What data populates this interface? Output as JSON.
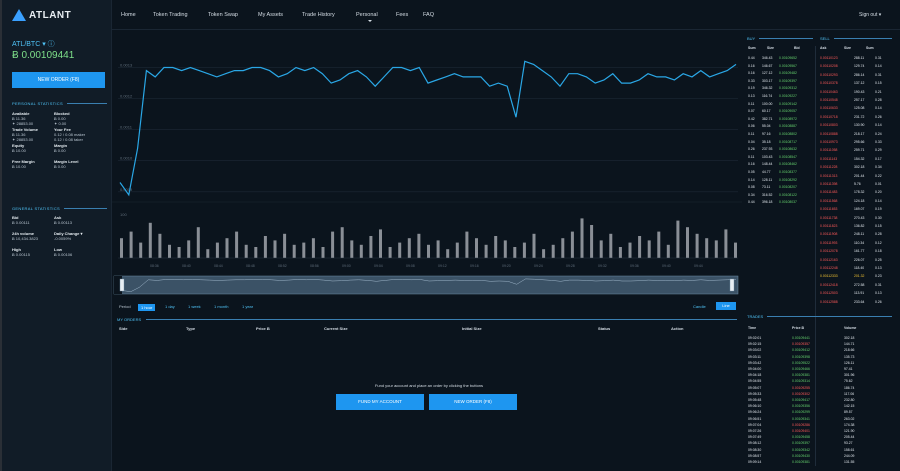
{
  "brand": {
    "logo_text": "ATLANT"
  },
  "sidebar": {
    "pair": "ATL/BTC ▾ ⓘ",
    "price": "Ƀ 0.00109441",
    "new_order_label": "NEW ORDER (F8)",
    "personal_title": "PERSONAL STATISTICS",
    "personal_stats": [
      {
        "label": "Available",
        "lines": [
          "Ƀ 11.36",
          "✦ 28853.00"
        ]
      },
      {
        "label": "Blocked",
        "lines": [
          "Ƀ 0.00",
          "✦ 0.00"
        ]
      },
      {
        "label": "Trade Volume",
        "lines": [
          "Ƀ 11.36",
          "✦ 28853.00"
        ]
      },
      {
        "label": "Your Fee",
        "lines": [
          "0.12 / 0.08 maker",
          "0.12 / 0.08 taker"
        ]
      },
      {
        "label": "Equity",
        "lines": [
          "Ƀ 10.00"
        ]
      },
      {
        "label": "Margin",
        "lines": [
          "Ƀ 0.00"
        ]
      },
      {
        "label": "Free Margin",
        "lines": [
          "Ƀ 10.00"
        ]
      },
      {
        "label": "Margin Level",
        "lines": [
          "Ƀ 0.00"
        ]
      }
    ],
    "general_title": "GENERAL STATISTICS",
    "general_stats": [
      {
        "label": "Bid",
        "lines": [
          "Ƀ 0.00111"
        ]
      },
      {
        "label": "Ask",
        "lines": [
          "Ƀ 0.00113"
        ]
      },
      {
        "label": "24h volume",
        "lines": [
          "Ƀ 10,434.3823"
        ]
      },
      {
        "label": "Daily Change ▾",
        "lines": [
          "-0.0059%"
        ]
      },
      {
        "label": "High",
        "lines": [
          "Ƀ 0.00115"
        ]
      },
      {
        "label": "Low",
        "lines": [
          "Ƀ 0.00106"
        ]
      }
    ]
  },
  "nav": {
    "items": [
      "Home",
      "Token Trading",
      "Token Swap",
      "My Assets",
      "Trade History",
      "Personal",
      "Fees",
      "FAQ"
    ],
    "sign_out": "Sign out ▾"
  },
  "chart_data": {
    "type": "line",
    "y_ticks": [
      "0.0013",
      "0.0012",
      "0.0011",
      "0.0010",
      "0.0009"
    ],
    "ylim": [
      0.00088,
      0.00135
    ],
    "price": [
      0.00093,
      0.00089,
      0.00104,
      0.00129,
      0.00127,
      0.0013,
      0.0013,
      0.00129,
      0.0013,
      0.00129,
      0.00128,
      0.00127,
      0.00128,
      0.00129,
      0.00129,
      0.0013,
      0.0013,
      0.00129,
      0.00127,
      0.00128,
      0.0013,
      0.00129,
      0.0013,
      0.00128,
      0.00125,
      0.00126,
      0.00128,
      0.00129,
      0.00127,
      0.00124,
      0.00127,
      0.0013,
      0.0013,
      0.00129,
      0.0013,
      0.00125,
      0.00126,
      0.00127,
      0.00128,
      0.00127,
      0.00127,
      0.00127,
      0.00124,
      0.00125,
      0.00124,
      0.00114,
      0.00132,
      0.00131,
      0.00129,
      0.00127,
      0.00124,
      0.00128,
      0.00128,
      0.00127,
      0.00125,
      0.00126,
      0.00128,
      0.00125,
      0.00125,
      0.00126,
      0.00128,
      0.00127,
      0.00127,
      0.00126,
      0.00128,
      0.00127,
      0.00129,
      0.00127,
      0.00128,
      0.00129,
      0.00131
    ],
    "volume_top_label": "100",
    "volume": [
      45,
      60,
      35,
      80,
      55,
      30,
      25,
      40,
      70,
      20,
      35,
      45,
      60,
      30,
      25,
      50,
      40,
      55,
      30,
      35,
      45,
      25,
      60,
      70,
      40,
      30,
      50,
      65,
      25,
      35,
      45,
      55,
      30,
      40,
      20,
      35,
      60,
      45,
      30,
      50,
      40,
      25,
      35,
      55,
      20,
      30,
      45,
      60,
      90,
      75,
      40,
      55,
      25,
      35,
      50,
      40,
      60,
      30,
      85,
      70,
      55,
      45,
      40,
      65,
      35
    ],
    "time_ticks": [
      "08:36",
      "08:40",
      "08:44",
      "08:48",
      "08:52",
      "08:56",
      "09:00",
      "09:04",
      "09:08",
      "09:12",
      "09:16",
      "09:20",
      "09:24",
      "09:28",
      "09:32",
      "09:36",
      "09:40",
      "09:44"
    ]
  },
  "period": {
    "label": "Period",
    "options": [
      "1 hour",
      "1 day",
      "1 week",
      "1 month",
      "1 year"
    ],
    "active": 0
  },
  "chart_mode": {
    "candle": "Candle",
    "line": "Line"
  },
  "orders": {
    "title": "MY ORDERS",
    "columns": [
      "Side",
      "Type",
      "Price Ƀ",
      "Current Size",
      "Initial Size",
      "Status",
      "Action"
    ],
    "empty_text": "Fund your account and place an order by clicking the buttons",
    "fund_label": "FUND MY ACCOUNT",
    "new_order_label": "NEW ORDER (F8)"
  },
  "orderbook": {
    "buy_title": "BUY",
    "sell_title": "SELL",
    "buy_headers": [
      "Sum",
      "Size",
      "Bid"
    ],
    "sell_headers": [
      "Ask",
      "Size",
      "Sum"
    ],
    "buy": [
      [
        "0.44",
        "346.43",
        "0.00109652"
      ],
      [
        "0.16",
        "146.67",
        "0.00109567"
      ],
      [
        "0.16",
        "127.12",
        "0.00109482"
      ],
      [
        "0.33",
        "303.17",
        "0.00109397"
      ],
      [
        "0.19",
        "346.32",
        "0.00109312"
      ],
      [
        "0.13",
        "116.74",
        "0.00109227"
      ],
      [
        "0.11",
        "100.00",
        "0.00109142"
      ],
      [
        "0.07",
        "60.17",
        "0.00109057"
      ],
      [
        "0.42",
        "382.71",
        "0.00108972"
      ],
      [
        "0.06",
        "55.04",
        "0.00108887"
      ],
      [
        "0.11",
        "97.16",
        "0.00108802"
      ],
      [
        "0.04",
        "35.18",
        "0.00108717"
      ],
      [
        "0.26",
        "237.93",
        "0.00108632"
      ],
      [
        "0.11",
        "103.43",
        "0.00108547"
      ],
      [
        "0.16",
        "148.44",
        "0.00108462"
      ],
      [
        "0.05",
        "44.77",
        "0.00108377"
      ],
      [
        "0.14",
        "128.11",
        "0.00108292"
      ],
      [
        "0.08",
        "73.11",
        "0.00108207"
      ],
      [
        "0.34",
        "316.52",
        "0.00108122"
      ],
      [
        "0.44",
        "396.18",
        "0.00108037"
      ]
    ],
    "sell": [
      [
        "0.00110123",
        "288.11",
        "0.31"
      ],
      [
        "0.00110208",
        "129.74",
        "0.14"
      ],
      [
        "0.00110293",
        "286.14",
        "0.31"
      ],
      [
        "0.00110378",
        "137.12",
        "0.15"
      ],
      [
        "0.00110463",
        "190.43",
        "0.21"
      ],
      [
        "0.00110548",
        "257.17",
        "0.28"
      ],
      [
        "0.00110633",
        "125.08",
        "0.14"
      ],
      [
        "0.00110718",
        "231.72",
        "0.26"
      ],
      [
        "0.00110803",
        "130.90",
        "0.14"
      ],
      [
        "0.00110888",
        "218.17",
        "0.24"
      ],
      [
        "0.00110973",
        "295.66",
        "0.33"
      ],
      [
        "0.00111058",
        "259.71",
        "0.29"
      ],
      [
        "0.00111143",
        "154.32",
        "0.17"
      ],
      [
        "0.00111228",
        "302.18",
        "0.34"
      ],
      [
        "0.00111313",
        "201.44",
        "0.22"
      ],
      [
        "0.00111398",
        "5.76",
        "0.01"
      ],
      [
        "0.00111483",
        "178.32",
        "0.20"
      ],
      [
        "0.00111568",
        "124.18",
        "0.14"
      ],
      [
        "0.00111653",
        "169.07",
        "0.19"
      ],
      [
        "0.00111738",
        "270.43",
        "0.30"
      ],
      [
        "0.00111823",
        "136.82",
        "0.15"
      ],
      [
        "0.00111908",
        "248.11",
        "0.28"
      ],
      [
        "0.00111993",
        "110.34",
        "0.12"
      ],
      [
        "0.00112078",
        "161.77",
        "0.18"
      ],
      [
        "0.00112163",
        "226.07",
        "0.25"
      ],
      [
        "0.00112248",
        "118.40",
        "0.13"
      ],
      [
        "0.00112333",
        "201.32",
        "0.23",
        "yellow"
      ],
      [
        "0.00112418",
        "272.58",
        "0.31"
      ],
      [
        "0.00112503",
        "113.91",
        "0.13"
      ],
      [
        "0.00112588",
        "233.64",
        "0.26"
      ]
    ]
  },
  "trades": {
    "title": "TRADES",
    "headers": [
      "Time",
      "Price Ƀ",
      "Volume"
    ],
    "rows": [
      [
        "09:02:01",
        "0.00109441",
        "302.18",
        "green"
      ],
      [
        "09:02:15",
        "0.00109357",
        "144.71",
        "red"
      ],
      [
        "09:03:02",
        "0.00109412",
        "218.66",
        "green"
      ],
      [
        "09:03:11",
        "0.00109398",
        "135.73",
        "green"
      ],
      [
        "09:03:42",
        "0.00109522",
        "126.11",
        "green"
      ],
      [
        "09:04:00",
        "0.00109466",
        "97.41",
        "green"
      ],
      [
        "09:04:18",
        "0.00109381",
        "301.96",
        "green"
      ],
      [
        "09:04:55",
        "0.00109314",
        "75.62",
        "green"
      ],
      [
        "09:05:07",
        "0.00109255",
        "186.74",
        "red"
      ],
      [
        "09:05:33",
        "0.00109302",
        "117.06",
        "red"
      ],
      [
        "09:05:48",
        "0.00109417",
        "232.80",
        "green"
      ],
      [
        "09:06:10",
        "0.00109356",
        "142.15",
        "green"
      ],
      [
        "09:06:24",
        "0.00109299",
        "89.57",
        "green"
      ],
      [
        "09:06:51",
        "0.00109341",
        "263.02",
        "green"
      ],
      [
        "09:07:04",
        "0.00109286",
        "174.38",
        "red"
      ],
      [
        "09:07:26",
        "0.00109401",
        "121.90",
        "red"
      ],
      [
        "09:07:49",
        "0.00109458",
        "205.44",
        "green"
      ],
      [
        "09:08:12",
        "0.00109397",
        "93.27",
        "green"
      ],
      [
        "09:08:30",
        "0.00109342",
        "158.61",
        "green"
      ],
      [
        "09:08:57",
        "0.00109430",
        "244.09",
        "green"
      ],
      [
        "09:09:14",
        "0.00109381",
        "131.55",
        "green"
      ]
    ]
  },
  "colors": {
    "accent": "#1e96f0",
    "line": "#2aa7e6",
    "buy": "#66d36e",
    "sell": "#ff5a5a"
  }
}
